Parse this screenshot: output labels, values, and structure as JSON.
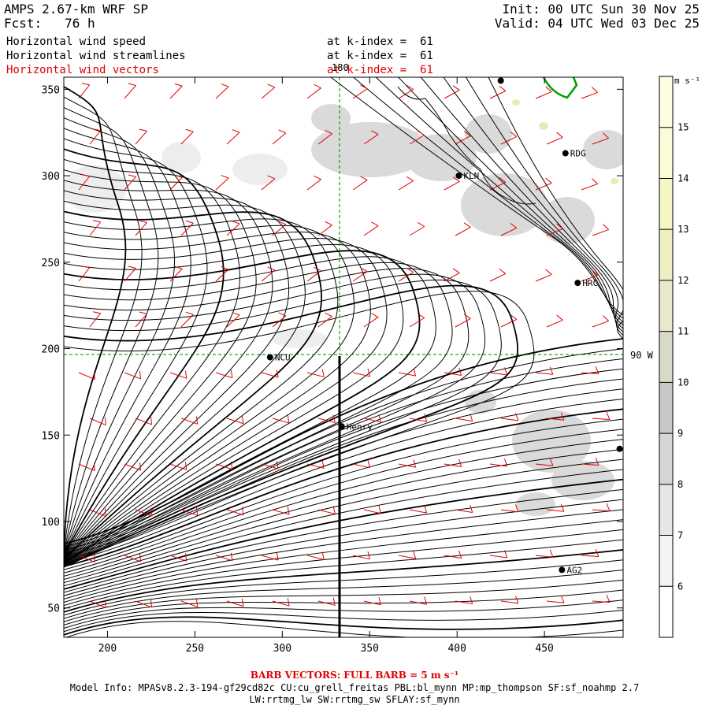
{
  "header": {
    "model": "AMPS 2.67-km WRF SP",
    "forecast": "Fcst:   76 h",
    "init": "Init: 00 UTC Sun 30 Nov 25",
    "valid": "Valid: 04 UTC Wed 03 Dec 25"
  },
  "fields": [
    {
      "name": "Horizontal wind speed",
      "level": "at k-index =  61",
      "color": "#000000"
    },
    {
      "name": "Horizontal wind streamlines",
      "level": "at k-index =  61",
      "color": "#000000"
    },
    {
      "name": "Horizontal wind vectors",
      "level": "at k-index =  61",
      "color": "#e00000"
    }
  ],
  "map": {
    "x_axis_ticks": [
      "200",
      "250",
      "300",
      "350",
      "400",
      "450"
    ],
    "x_axis_values": [
      200,
      250,
      300,
      350,
      400,
      450
    ],
    "y_axis_ticks": [
      "50",
      "100",
      "150",
      "200",
      "250",
      "300",
      "350"
    ],
    "y_axis_values": [
      50,
      100,
      150,
      200,
      250,
      300,
      350
    ],
    "x_range": [
      175,
      495
    ],
    "y_range": [
      33,
      357
    ],
    "meridian_label": "180",
    "meridian_x": 333,
    "parallel_label": "90 W",
    "parallel_y": 195,
    "stations": [
      {
        "label": "NCU",
        "x": 293,
        "y": 195
      },
      {
        "label": "Henry",
        "x": 334,
        "y": 155
      },
      {
        "label": "KLN",
        "x": 401,
        "y": 300
      },
      {
        "label": "RDG",
        "x": 462,
        "y": 313
      },
      {
        "label": "HRC",
        "x": 469,
        "y": 238
      },
      {
        "label": "AG2",
        "x": 460,
        "y": 72
      },
      {
        "label": "",
        "x": 425,
        "y": 355
      },
      {
        "label": "",
        "x": 493,
        "y": 142
      }
    ]
  },
  "colorbar": {
    "units": "m s⁻¹",
    "ticks": [
      "6",
      "7",
      "8",
      "9",
      "10",
      "11",
      "12",
      "13",
      "14",
      "15"
    ],
    "colors": [
      "#ffffff",
      "#f3f3f3",
      "#e6e6e6",
      "#d6d6d6",
      "#c8c8c8",
      "#d9d9c9",
      "#e8e8cc",
      "#efefc3",
      "#f5f5c6",
      "#fbfbd8",
      "#fdfde4"
    ]
  },
  "footer": {
    "barb_note": "BARB VECTORS:  FULL BARB = 5 m s⁻¹",
    "model_info": "Model Info: MPASv8.2.3-194-gf29cd82c CU:cu_grell_freitas PBL:bl_mynn MP:mp_thompson SF:sf_noahmp 2.7",
    "model_info2": "LW:rrtmg_lw SW:rrtmg_sw SFLAY:sf_mynn"
  }
}
